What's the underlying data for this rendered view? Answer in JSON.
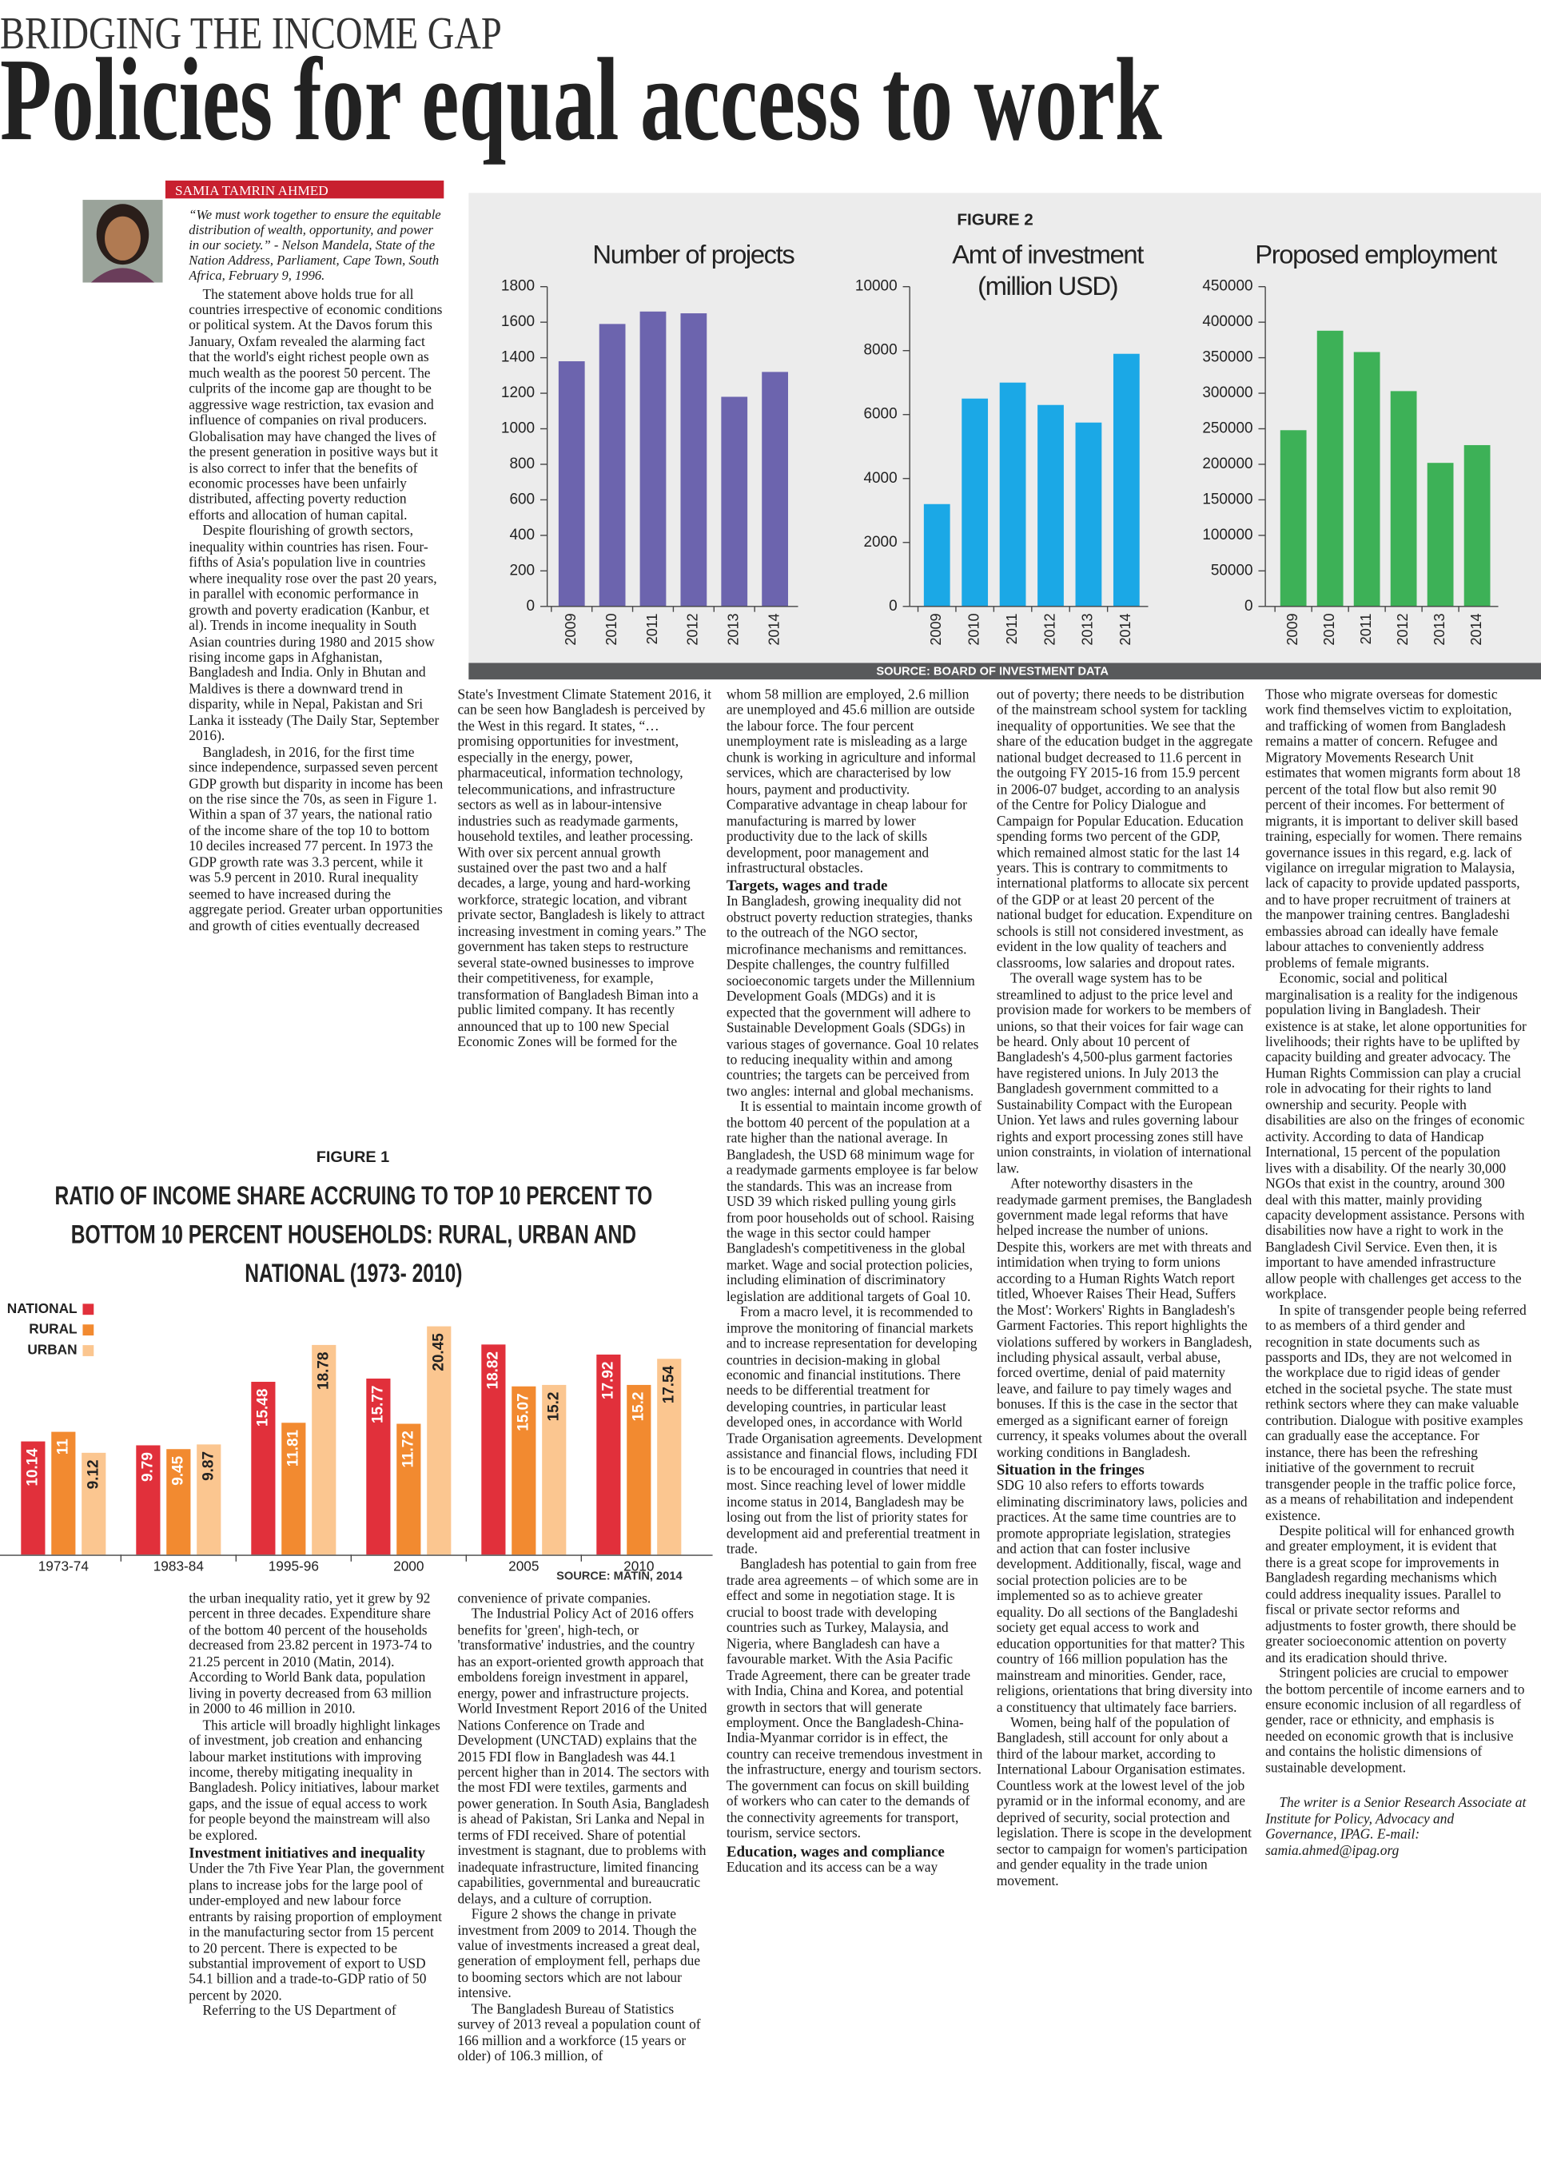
{
  "header": {
    "kicker": "BRIDGING THE INCOME GAP",
    "title": "Policies for equal access to work"
  },
  "author": "SAMIA TAMRIN AHMED",
  "figures": {
    "figure_2": {
      "label": "FIGURE 2",
      "source": "SOURCE: BOARD OF INVESTMENT DATA"
    },
    "figure_1": {
      "label": "FIGURE 1",
      "source": "SOURCE: MATIN, 2014"
    }
  },
  "chart_data": [
    {
      "type": "bar",
      "title": "Number of projects",
      "categories": [
        "2009",
        "2010",
        "2011",
        "2012",
        "2013",
        "2014"
      ],
      "values": [
        1380,
        1590,
        1660,
        1650,
        1180,
        1320
      ],
      "color": "#6c64ae",
      "ylim": [
        0,
        1800
      ],
      "yticks": [
        0,
        200,
        400,
        600,
        800,
        1000,
        1200,
        1400,
        1600,
        1800
      ]
    },
    {
      "type": "bar",
      "title": "Amt of investment (million USD)",
      "categories": [
        "2009",
        "2010",
        "2011",
        "2012",
        "2013",
        "2014"
      ],
      "values": [
        3200,
        6500,
        7000,
        6300,
        5750,
        7900
      ],
      "color": "#1ba8e6",
      "ylim": [
        0,
        10000
      ],
      "yticks": [
        0,
        2000,
        4000,
        6000,
        8000,
        10000
      ]
    },
    {
      "type": "bar",
      "title": "Proposed employment",
      "categories": [
        "2009",
        "2010",
        "2011",
        "2012",
        "2013",
        "2014"
      ],
      "values": [
        248000,
        388000,
        358000,
        303000,
        202000,
        227000
      ],
      "color": "#3db157",
      "ylim": [
        0,
        450000
      ],
      "yticks": [
        0,
        50000,
        100000,
        150000,
        200000,
        250000,
        300000,
        350000,
        400000,
        450000
      ]
    },
    {
      "type": "bar",
      "title": "RATIO OF INCOME SHARE ACCRUING TO TOP 10 PERCENT TO BOTTOM 10 PERCENT HOUSEHOLDS: RURAL, URBAN AND NATIONAL (1973- 2010)",
      "categories": [
        "1973-74",
        "1983-84",
        "1995-96",
        "2000",
        "2005",
        "2010"
      ],
      "series": [
        {
          "name": "NATIONAL",
          "color": "#e1303b",
          "values": [
            10.14,
            9.79,
            15.48,
            15.77,
            18.82,
            17.92
          ]
        },
        {
          "name": "RURAL",
          "color": "#f28a30",
          "values": [
            11,
            9.45,
            11.81,
            11.72,
            15.07,
            15.2
          ]
        },
        {
          "name": "URBAN",
          "color": "#fbc690",
          "values": [
            9.12,
            9.87,
            18.78,
            20.45,
            15.2,
            17.54
          ]
        }
      ]
    }
  ],
  "article": {
    "columns": [
      [
        {
          "quote": "“We must work together to ensure the equitable distribution of wealth, opportunity, and power in our society.” - Nelson Mandela, State of the Nation Address, Parliament, Cape Town, South Africa, February 9, 1996."
        },
        "The statement above holds true for all countries irrespective of economic conditions or political system. At the Davos forum this January, Oxfam revealed the alarming fact that the world's eight richest people own as much wealth as the poorest 50 percent. The culprits of the income gap are thought to be aggressive wage restriction, tax evasion and influence of companies on rival producers. Globalisation may have changed the lives of the present generation in positive ways but it is also correct to infer that the benefits of economic processes have been unfairly distributed, affecting poverty reduction efforts and allocation of human capital.",
        "Despite flourishing of growth sectors, inequality within countries has risen. Four-fifths of Asia's population live in countries where inequality rose over the past 20 years, in parallel with economic performance in growth and poverty eradication (Kanbur, et al). Trends in income inequality in South Asian countries during 1980 and 2015 show rising income gaps in Afghanistan, Bangladesh and India. Only in Bhutan and Maldives is there a downward trend in disparity, while in Nepal, Pakistan and Sri Lanka it issteady (The Daily Star, September 2016).",
        "Bangladesh, in 2016, for the first time since independence, surpassed seven percent GDP growth but disparity in income has been on the rise since the 70s, as seen in Figure 1. Within a span of 37 years, the national ratio of the income share of the top 10 to bottom 10 deciles increased 77 percent. In 1973 the GDP growth rate was 3.3 percent, while it was 5.9 percent in 2010. Rural inequality seemed to have increased during the aggregate period. Greater urban opportunities and growth of cities eventually decreased"
      ],
      [
        "the urban inequality ratio, yet it grew by 92 percent in three decades. Expenditure share of the bottom 40 percent of the households decreased from 23.82 percent in 1973-74 to 21.25 percent in 2010 (Matin, 2014). According to World Bank data, population living in poverty decreased from 63 million in 2000 to 46 million in 2010.",
        "This article will broadly highlight linkages of investment, job creation and enhancing labour market institutions with improving income, thereby mitigating inequality in Bangladesh. Policy initiatives, labour market gaps, and the issue of equal access to work for people beyond the mainstream will also be explored.",
        {
          "heading": "Investment initiatives and inequality"
        },
        "Under the 7th Five Year Plan, the government plans to increase jobs for the large pool of under-employed and new labour force entrants by raising proportion of employment in the manufacturing sector from 15 percent to 20 percent. There is expected to be substantial improvement of export to USD 54.1 billion and a trade-to-GDP ratio of 50 percent by 2020.",
        "Referring to the US Department of"
      ],
      [
        "State's Investment Climate Statement 2016, it can be seen how Bangladesh is perceived by the West in this regard. It states, “…promising opportunities for investment, especially in the energy, power, pharmaceutical, information technology, telecommunications, and infrastructure sectors as well as in labour-intensive industries such as readymade garments, household textiles, and leather processing. With over six percent annual growth sustained over the past two and a half decades, a large, young and hard-working workforce, strategic location, and vibrant private sector, Bangladesh is likely to attract increasing investment in coming years.” The government has taken steps to restructure several state-owned businesses to improve their competitiveness, for example, transformation of Bangladesh Biman into a public limited company. It has recently announced that up to 100 new Special Economic Zones will be formed for the"
      ],
      [
        "convenience of private companies.",
        "The Industrial Policy Act of 2016 offers benefits for 'green', high-tech, or 'transformative' industries, and the country has an export-oriented growth approach that emboldens foreign investment in apparel, energy, power and infrastructure projects. World Investment Report 2016 of the United Nations Conference on Trade and Development (UNCTAD) explains that the 2015 FDI flow in Bangladesh was 44.1 percent higher than in 2014. The sectors with the most FDI were textiles, garments and power generation. In South Asia, Bangladesh is ahead of Pakistan, Sri Lanka and Nepal in terms of FDI received. Share of potential investment is stagnant, due to problems with inadequate infrastructure, limited financing capabilities, governmental and bureaucratic delays, and a culture of corruption.",
        "Figure 2 shows the change in private investment from 2009 to 2014. Though the value of investments increased a great deal, generation of employment fell, perhaps due to booming sectors which are not labour intensive.",
        "The Bangladesh Bureau of Statistics survey of 2013 reveal a population count of 166 million and a workforce (15 years or older) of 106.3 million, of"
      ],
      [
        "whom 58 million are employed, 2.6 million are unemployed and 45.6 million are outside the labour force. The four percent unemployment rate is misleading as a large chunk is working in agriculture and informal services, which are characterised by low hours, payment and productivity. Comparative advantage in cheap labour for manufacturing is marred by lower productivity due to the lack of skills development, poor management and infrastructural obstacles.",
        {
          "heading": "Targets, wages and trade"
        },
        "In Bangladesh, growing inequality did not obstruct poverty reduction strategies, thanks to the outreach of the NGO sector, microfinance mechanisms and remittances. Despite challenges, the country fulfilled socioeconomic targets under the Millennium Development Goals (MDGs) and it is expected that the government will adhere to Sustainable Development Goals (SDGs) in various stages of governance. Goal 10 relates to reducing inequality within and among countries; the targets can be perceived from two angles: internal and global mechanisms.",
        "It is essential to maintain income growth of the bottom 40 percent of the population at a rate higher than the national average. In Bangladesh, the USD 68 minimum wage for a readymade garments employee is far below the standards. This was an increase from USD 39 which risked pulling young girls from poor households out of school. Raising the wage in this sector could hamper Bangladesh's competitiveness in the global market. Wage and social protection policies, including elimination of discriminatory legislation are additional targets of Goal 10.",
        "From a macro level, it is recommended to improve the monitoring of financial markets and to increase representation for developing countries in decision-making in global economic and financial institutions. There needs to be differential treatment for developing countries, in particular least developed ones, in accordance with World Trade Organisation agreements. Development assistance and financial flows, including FDI is to be encouraged in countries that need it most. Since reaching level of lower middle income status in 2014, Bangladesh may be losing out from the list of priority states for development aid and preferential treatment in trade.",
        "Bangladesh has potential to gain from free trade area agreements – of which some are in effect and some in negotiation stage. It is crucial to boost trade with developing countries such as Turkey, Malaysia, and Nigeria, where Bangladesh can have a favourable market. With the Asia Pacific Trade Agreement, there can be greater trade with India, China and Korea, and potential growth in sectors that will generate employment. Once the Bangladesh-China-India-Myanmar corridor is in effect, the country can receive tremendous investment in the infrastructure, energy and tourism sectors. The government can focus on skill building of workers who can cater to the demands of the connectivity agreements for transport, tourism, service sectors.",
        {
          "heading": "Education, wages and compliance"
        },
        "Education and its access can be a way"
      ],
      [
        "out of poverty; there needs to be distribution of the mainstream school system for tackling inequality of opportunities. We see that the share of the education budget in the aggregate national budget decreased to 11.6 percent in the outgoing FY 2015-16 from 15.9 percent in 2006-07 budget, according to an analysis of the Centre for Policy Dialogue and Campaign for Popular Education. Education spending forms two percent of the GDP, which remained almost static for the last 14 years. This is contrary to commitments to international platforms to allocate six percent of the GDP or at least 20 percent of the national budget for education. Expenditure on schools is still not considered investment, as evident in the low quality of teachers and classrooms, low salaries and dropout rates.",
        "The overall wage system has to be streamlined to adjust to the price level and provision made for workers to be members of unions, so that their voices for fair wage can be heard. Only about 10 percent of Bangladesh's 4,500-plus garment factories have registered unions. In July 2013 the Bangladesh government committed to a Sustainability Compact with the European Union. Yet laws and rules governing labour rights and export processing zones still have union constraints, in violation of international law.",
        "After noteworthy disasters in the readymade garment premises, the Bangladesh government made legal reforms that have helped increase the number of unions. Despite this, workers are met with threats and intimidation when trying to form unions according to a Human Rights Watch report titled, Whoever Raises Their Head, Suffers the Most': Workers' Rights in Bangladesh's Garment Factories. This report highlights the violations suffered by workers in Bangladesh, including physical assault, verbal abuse, forced overtime, denial of paid maternity leave, and failure to pay timely wages and bonuses. If this is the case in the sector that emerged as a significant earner of foreign currency, it speaks volumes about the overall working conditions in Bangladesh.",
        {
          "heading": "Situation in the fringes"
        },
        "SDG 10 also refers to efforts towards eliminating discriminatory laws, policies and practices. At the same time countries are to promote appropriate legislation, strategies and action that can foster inclusive development. Additionally, fiscal, wage and social protection policies are to be implemented so as to achieve greater equality. Do all sections of the Bangladeshi society get equal access to work and education opportunities for that matter? This country of 166 million population has the mainstream and minorities. Gender, race, religions, orientations that bring diversity into a constituency that ultimately face barriers.",
        "Women, being half of the population of Bangladesh, still account for only about a third of the labour market, according to International Labour Organisation estimates. Countless work at the lowest level of the job pyramid or in the informal economy, and are deprived of security, social protection and legislation. There is scope in the development sector to campaign for women's participation and gender equality in the trade union movement."
      ],
      [
        "Those who migrate overseas for domestic work find themselves victim to exploitation, and trafficking of women from Bangladesh remains a matter of concern. Refugee and Migratory Movements Research Unit estimates that women migrants form about 18 percent of the total flow but also remit 90 percent of their incomes. For betterment of migrants, it is important to deliver skill based training, especially for women. There remains governance issues in this regard, e.g. lack of vigilance on irregular migration to Malaysia, lack of capacity to provide updated passports, and to have proper recruitment of trainers at the manpower training centres. Bangladeshi embassies abroad can ideally have female labour attaches to conveniently address problems of female migrants.",
        "Economic, social and political marginalisation is a reality for the indigenous population living in Bangladesh. Their existence is at stake, let alone opportunities for livelihoods; their rights have to be uplifted by capacity building and greater advocacy. The Human Rights Commission can play a crucial role in advocating for their rights to land ownership and security. People with disabilities are also on the fringes of economic activity. According to data of Handicap International, 15 percent of the population lives with a disability. Of the nearly 30,000 NGOs that exist in the country, around 300 deal with this matter, mainly providing capacity development assistance. Persons with disabilities now have a right to work in the Bangladesh Civil Service. Even then, it is important to have amended infrastructure allow people with challenges get access to the workplace.",
        "In spite of transgender people being referred to as members of a third gender and recognition in state documents such as passports and IDs, they are not welcomed in the workplace due to rigid ideas of gender etched in the societal psyche. The state must rethink sectors where they can make valuable contribution. Dialogue with positive examples can gradually ease the acceptance. For instance, there has been the refreshing initiative of the government to recruit transgender people in the traffic police force, as a means of rehabilitation and independent existence.",
        "Despite political will for enhanced growth and greater employment, it is evident that there is a great scope for improvements in Bangladesh regarding mechanisms which could address inequality issues. Parallel to fiscal or private sector reforms and adjustments to foster growth, there should be greater socioeconomic attention on poverty and its eradication should thrive.",
        "Stringent policies are crucial to empower the bottom percentile of income earners and to ensure economic inclusion of all regardless of gender, race or ethnicity, and emphasis is needed on economic growth that is inclusive and contains the holistic dimensions of sustainable development.",
        {
          "byline": "The writer is a Senior Research Associate at Institute for Policy, Advocacy and Governance, IPAG. E-mail: samia.ahmed@ipag.org"
        }
      ]
    ]
  }
}
